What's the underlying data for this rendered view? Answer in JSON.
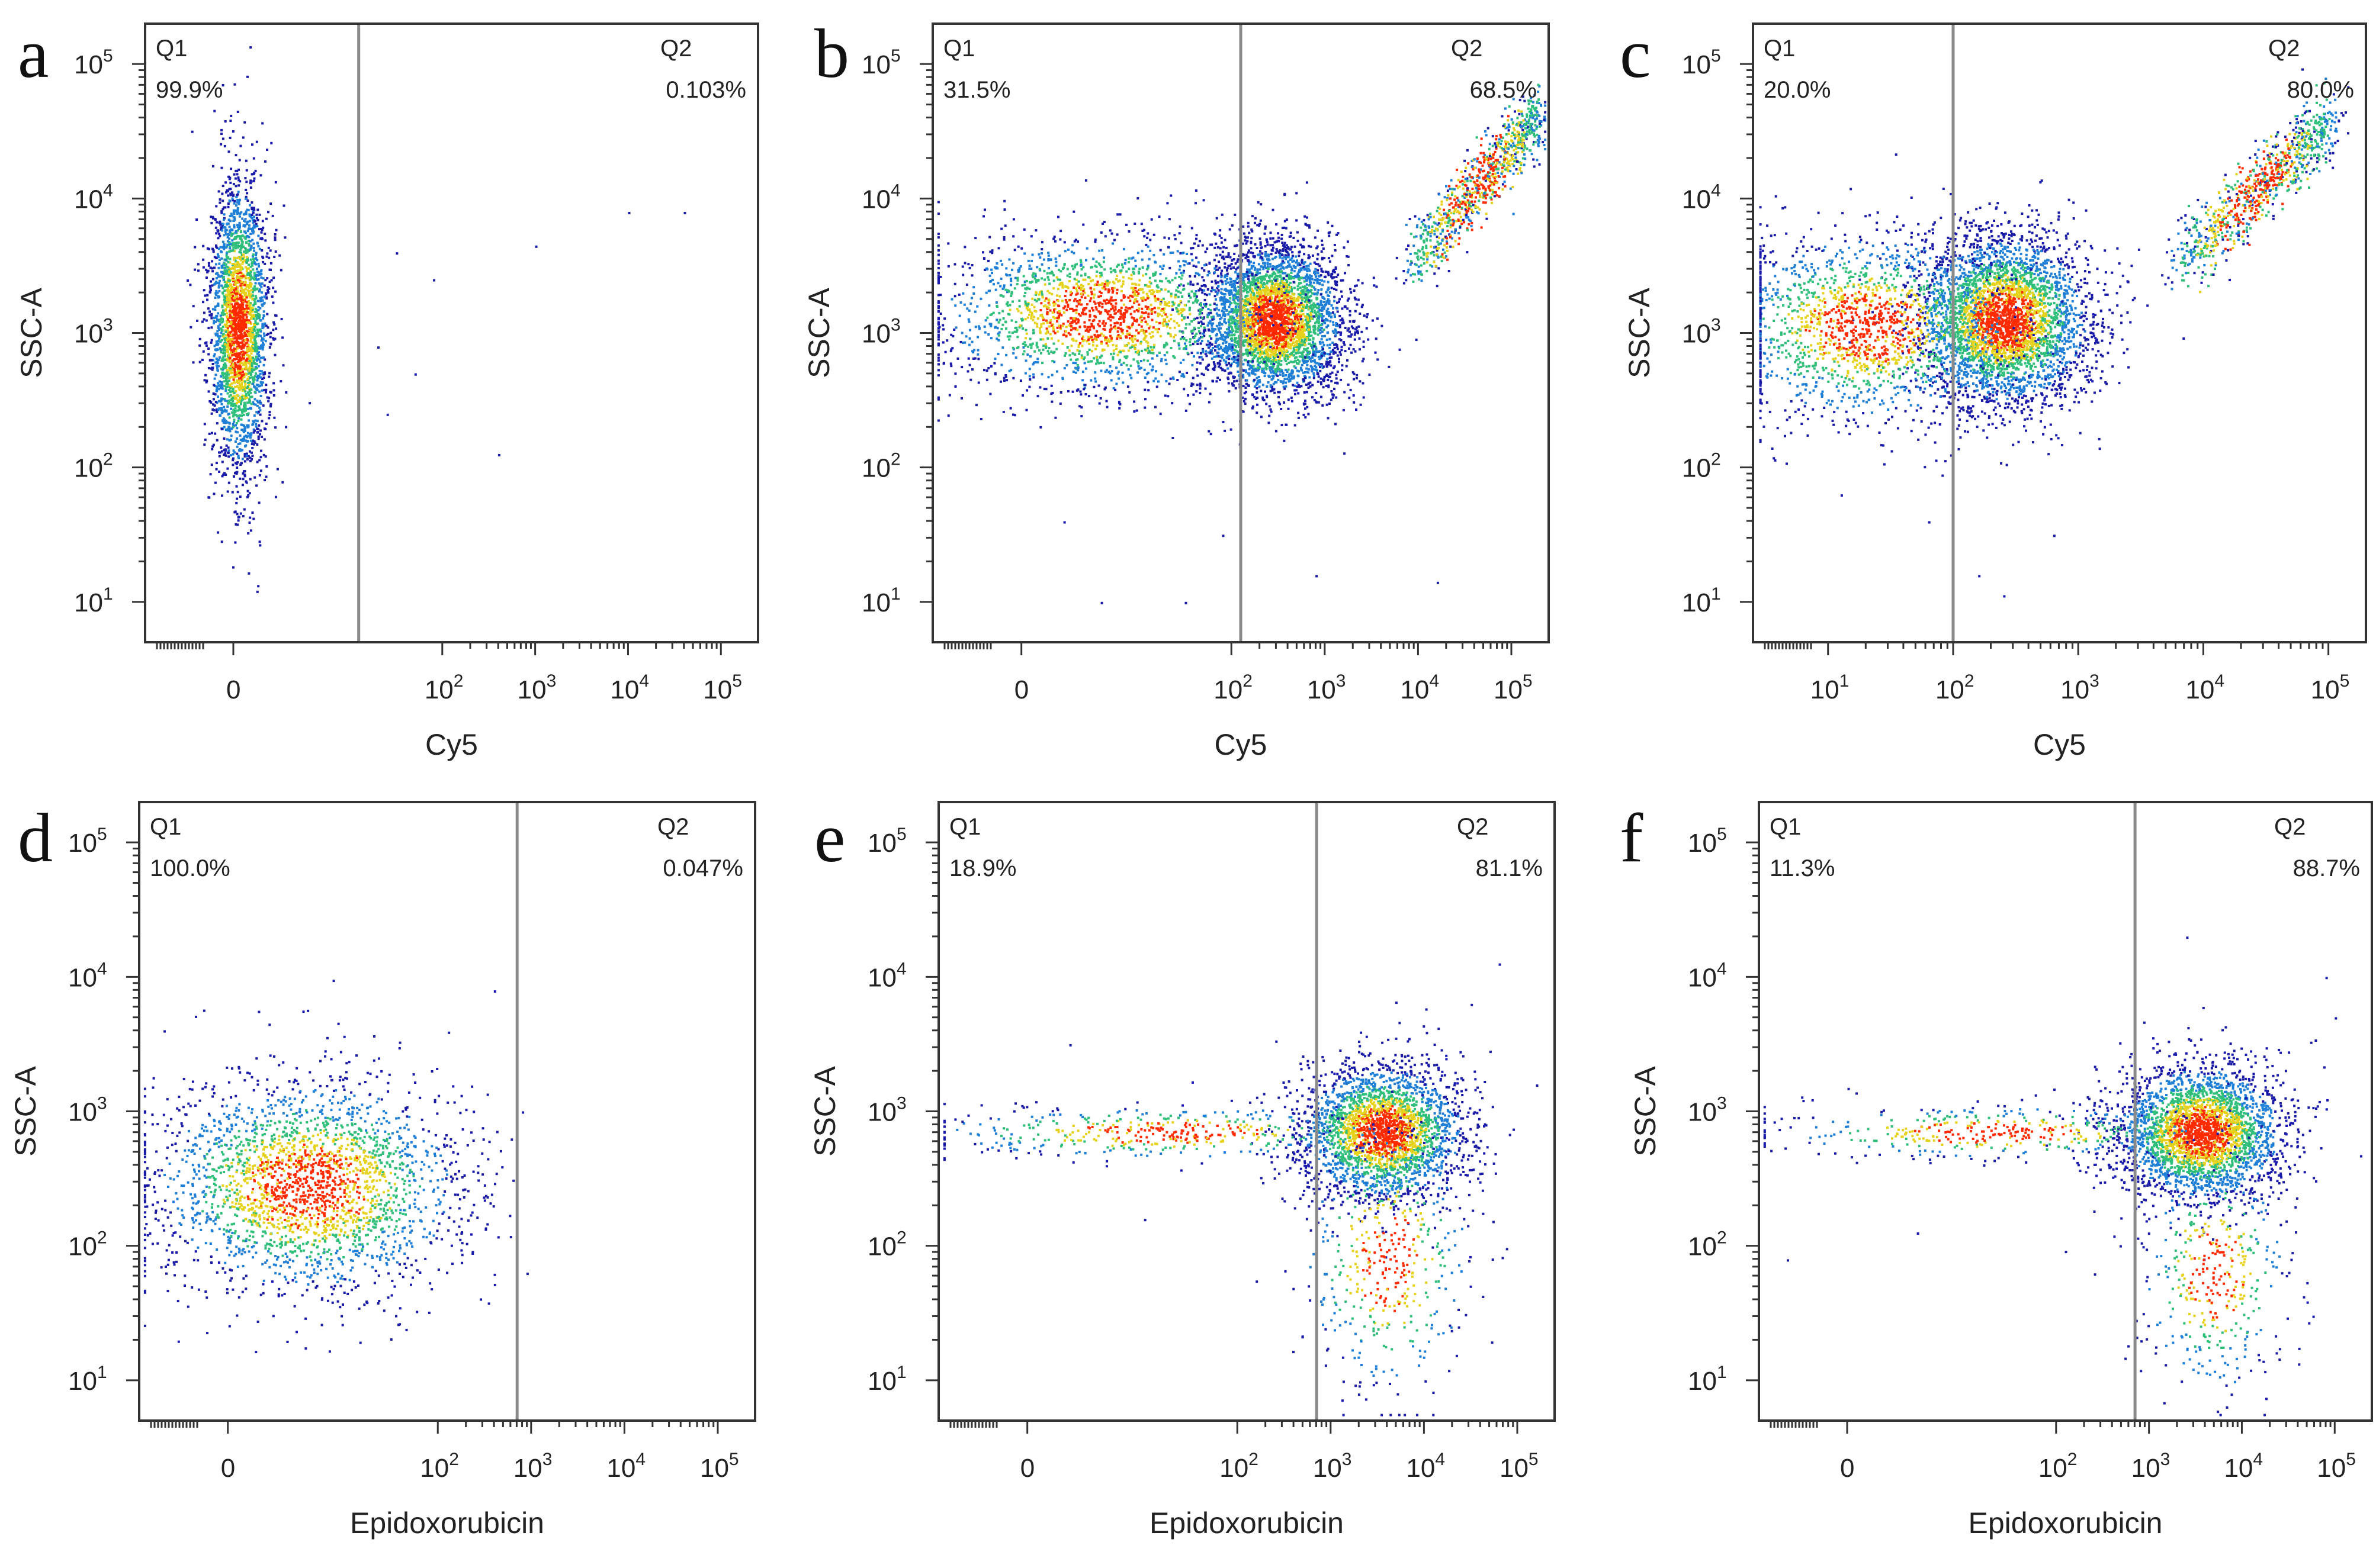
{
  "figure": {
    "colors": {
      "density_low": "#1a1aa8",
      "density_midlow": "#1f7fd6",
      "density_mid": "#2fbf7a",
      "density_midhigh": "#e6d21c",
      "density_high": "#ff2a00",
      "gate": "#8a8a8a",
      "frame": "#333333"
    }
  },
  "chart_data": [
    {
      "panel": "a",
      "type": "scatter",
      "xlabel": "Cy5",
      "ylabel": "SSC-A",
      "x_ticks": [
        {
          "base": "0",
          "exp": ""
        },
        {
          "base": "10",
          "exp": "2"
        },
        {
          "base": "10",
          "exp": "3"
        },
        {
          "base": "10",
          "exp": "4"
        },
        {
          "base": "10",
          "exp": "5"
        }
      ],
      "y_ticks": [
        {
          "base": "10",
          "exp": "1"
        },
        {
          "base": "10",
          "exp": "2"
        },
        {
          "base": "10",
          "exp": "3"
        },
        {
          "base": "10",
          "exp": "4"
        },
        {
          "base": "10",
          "exp": "5"
        }
      ],
      "xlim_log10": [
        -1.2,
        5.4
      ],
      "ylim_log10": [
        0.7,
        5.3
      ],
      "gate_log10": 1.1,
      "quadrants": [
        {
          "name": "Q1",
          "percent": "99.9%"
        },
        {
          "name": "Q2",
          "percent": "0.103%"
        }
      ],
      "clusters": [
        {
          "x": -0.2,
          "y": 3.05,
          "sx": 0.16,
          "sy": 0.55,
          "n": 2600
        }
      ],
      "outliers": [
        [
          1.5,
          3.6
        ],
        [
          1.3,
          2.9
        ],
        [
          1.9,
          3.4
        ],
        [
          3.0,
          3.65
        ],
        [
          4.0,
          3.9
        ],
        [
          4.6,
          3.9
        ],
        [
          2.6,
          2.1
        ],
        [
          1.4,
          2.4
        ],
        [
          1.7,
          2.7
        ]
      ]
    },
    {
      "panel": "b",
      "type": "scatter",
      "xlabel": "Cy5",
      "ylabel": "SSC-A",
      "x_ticks": [
        {
          "base": "0",
          "exp": ""
        },
        {
          "base": "10",
          "exp": "2"
        },
        {
          "base": "10",
          "exp": "3"
        },
        {
          "base": "10",
          "exp": "4"
        },
        {
          "base": "10",
          "exp": "5"
        }
      ],
      "y_ticks": [
        {
          "base": "10",
          "exp": "1"
        },
        {
          "base": "10",
          "exp": "2"
        },
        {
          "base": "10",
          "exp": "3"
        },
        {
          "base": "10",
          "exp": "4"
        },
        {
          "base": "10",
          "exp": "5"
        }
      ],
      "xlim_log10": [
        -1.2,
        5.4
      ],
      "ylim_log10": [
        0.7,
        5.3
      ],
      "gate_log10": 2.1,
      "quadrants": [
        {
          "name": "Q1",
          "percent": "31.5%"
        },
        {
          "name": "Q2",
          "percent": "68.5%"
        }
      ],
      "clusters": [
        {
          "x": 2.45,
          "y": 3.1,
          "sx": 0.38,
          "sy": 0.28,
          "n": 3600
        },
        {
          "x": 0.6,
          "y": 3.15,
          "sx": 0.9,
          "sy": 0.3,
          "n": 2000
        }
      ],
      "diagonal": {
        "x0": 3.9,
        "y0": 3.5,
        "x1": 5.3,
        "y1": 4.65,
        "spread": 0.12,
        "n": 900
      },
      "outliers": [
        [
          0.6,
          1.0
        ],
        [
          1.5,
          1.0
        ],
        [
          2.9,
          1.2
        ],
        [
          4.2,
          1.15
        ],
        [
          0.2,
          1.6
        ],
        [
          1.9,
          1.5
        ]
      ]
    },
    {
      "panel": "c",
      "type": "scatter",
      "xlabel": "Cy5",
      "ylabel": "SSC-A",
      "x_ticks": [
        {
          "base": "10",
          "exp": "1"
        },
        {
          "base": "10",
          "exp": "2"
        },
        {
          "base": "10",
          "exp": "3"
        },
        {
          "base": "10",
          "exp": "4"
        },
        {
          "base": "10",
          "exp": "5"
        }
      ],
      "y_ticks": [
        {
          "base": "10",
          "exp": "1"
        },
        {
          "base": "10",
          "exp": "2"
        },
        {
          "base": "10",
          "exp": "3"
        },
        {
          "base": "10",
          "exp": "4"
        },
        {
          "base": "10",
          "exp": "5"
        }
      ],
      "xlim_log10": [
        0.4,
        5.3
      ],
      "ylim_log10": [
        0.7,
        5.3
      ],
      "gate_log10": 2.0,
      "quadrants": [
        {
          "name": "Q1",
          "percent": "20.0%"
        },
        {
          "name": "Q2",
          "percent": "80.0%"
        }
      ],
      "clusters": [
        {
          "x": 2.4,
          "y": 3.1,
          "sx": 0.35,
          "sy": 0.32,
          "n": 3600
        },
        {
          "x": 1.3,
          "y": 3.05,
          "sx": 0.6,
          "sy": 0.35,
          "n": 1700
        }
      ],
      "diagonal": {
        "x0": 3.8,
        "y0": 3.5,
        "x1": 5.0,
        "y1": 4.6,
        "spread": 0.12,
        "n": 900
      },
      "outliers": [
        [
          2.2,
          1.2
        ],
        [
          2.4,
          1.05
        ],
        [
          1.8,
          1.6
        ],
        [
          1.1,
          1.8
        ],
        [
          2.8,
          1.5
        ]
      ]
    },
    {
      "panel": "d",
      "type": "scatter",
      "xlabel": "Epidoxorubicin",
      "ylabel": "SSC-A",
      "x_ticks": [
        {
          "base": "0",
          "exp": ""
        },
        {
          "base": "10",
          "exp": "2"
        },
        {
          "base": "10",
          "exp": "3"
        },
        {
          "base": "10",
          "exp": "4"
        },
        {
          "base": "10",
          "exp": "5"
        }
      ],
      "y_ticks": [
        {
          "base": "10",
          "exp": "1"
        },
        {
          "base": "10",
          "exp": "2"
        },
        {
          "base": "10",
          "exp": "3"
        },
        {
          "base": "10",
          "exp": "4"
        },
        {
          "base": "10",
          "exp": "5"
        }
      ],
      "xlim_log10": [
        -1.2,
        5.4
      ],
      "ylim_log10": [
        0.7,
        5.3
      ],
      "gate_log10": 2.85,
      "quadrants": [
        {
          "name": "Q1",
          "percent": "100.0%"
        },
        {
          "name": "Q2",
          "percent": "0.047%"
        }
      ],
      "clusters": [
        {
          "x": 0.6,
          "y": 2.45,
          "sx": 0.85,
          "sy": 0.4,
          "n": 2500,
          "xmax": 2.8,
          "ymin": 1.0
        }
      ],
      "outliers": [
        [
          2.9,
          3.0
        ],
        [
          2.95,
          1.8
        ],
        [
          2.6,
          3.9
        ]
      ]
    },
    {
      "panel": "e",
      "type": "scatter",
      "xlabel": "Epidoxorubicin",
      "ylabel": "SSC-A",
      "x_ticks": [
        {
          "base": "0",
          "exp": ""
        },
        {
          "base": "10",
          "exp": "2"
        },
        {
          "base": "10",
          "exp": "3"
        },
        {
          "base": "10",
          "exp": "4"
        },
        {
          "base": "10",
          "exp": "5"
        }
      ],
      "y_ticks": [
        {
          "base": "10",
          "exp": "1"
        },
        {
          "base": "10",
          "exp": "2"
        },
        {
          "base": "10",
          "exp": "3"
        },
        {
          "base": "10",
          "exp": "4"
        },
        {
          "base": "10",
          "exp": "5"
        }
      ],
      "xlim_log10": [
        -1.2,
        5.4
      ],
      "ylim_log10": [
        0.7,
        5.3
      ],
      "gate_log10": 2.85,
      "quadrants": [
        {
          "name": "Q1",
          "percent": "18.9%"
        },
        {
          "name": "Q2",
          "percent": "81.1%"
        }
      ],
      "clusters": [
        {
          "x": 3.55,
          "y": 2.85,
          "sx": 0.45,
          "sy": 0.25,
          "n": 2600
        },
        {
          "x": 3.6,
          "y": 1.9,
          "sx": 0.45,
          "sy": 0.5,
          "n": 450
        },
        {
          "x": 1.2,
          "y": 2.85,
          "sx": 1.3,
          "sy": 0.1,
          "n": 450
        }
      ],
      "outliers": [
        [
          4.8,
          4.1
        ],
        [
          4.5,
          3.8
        ],
        [
          5.2,
          3.2
        ],
        [
          0.2,
          3.5
        ],
        [
          1.0,
          2.2
        ]
      ]
    },
    {
      "panel": "f",
      "type": "scatter",
      "xlabel": "Epidoxorubicin",
      "ylabel": "SSC-A",
      "x_ticks": [
        {
          "base": "0",
          "exp": ""
        },
        {
          "base": "10",
          "exp": "2"
        },
        {
          "base": "10",
          "exp": "3"
        },
        {
          "base": "10",
          "exp": "4"
        },
        {
          "base": "10",
          "exp": "5"
        }
      ],
      "y_ticks": [
        {
          "base": "10",
          "exp": "1"
        },
        {
          "base": "10",
          "exp": "2"
        },
        {
          "base": "10",
          "exp": "3"
        },
        {
          "base": "10",
          "exp": "4"
        },
        {
          "base": "10",
          "exp": "5"
        }
      ],
      "xlim_log10": [
        -1.2,
        5.4
      ],
      "ylim_log10": [
        0.7,
        5.3
      ],
      "gate_log10": 2.85,
      "quadrants": [
        {
          "name": "Q1",
          "percent": "11.3%"
        },
        {
          "name": "Q2",
          "percent": "88.7%"
        }
      ],
      "clusters": [
        {
          "x": 3.55,
          "y": 2.85,
          "sx": 0.45,
          "sy": 0.25,
          "n": 2900
        },
        {
          "x": 3.7,
          "y": 1.8,
          "sx": 0.4,
          "sy": 0.45,
          "n": 400
        },
        {
          "x": 1.3,
          "y": 2.85,
          "sx": 1.2,
          "sy": 0.1,
          "n": 400
        }
      ],
      "outliers": [
        [
          4.9,
          4.0
        ],
        [
          5.0,
          3.7
        ],
        [
          3.4,
          4.3
        ],
        [
          -0.9,
          1.9
        ],
        [
          0.5,
          2.1
        ]
      ]
    }
  ]
}
